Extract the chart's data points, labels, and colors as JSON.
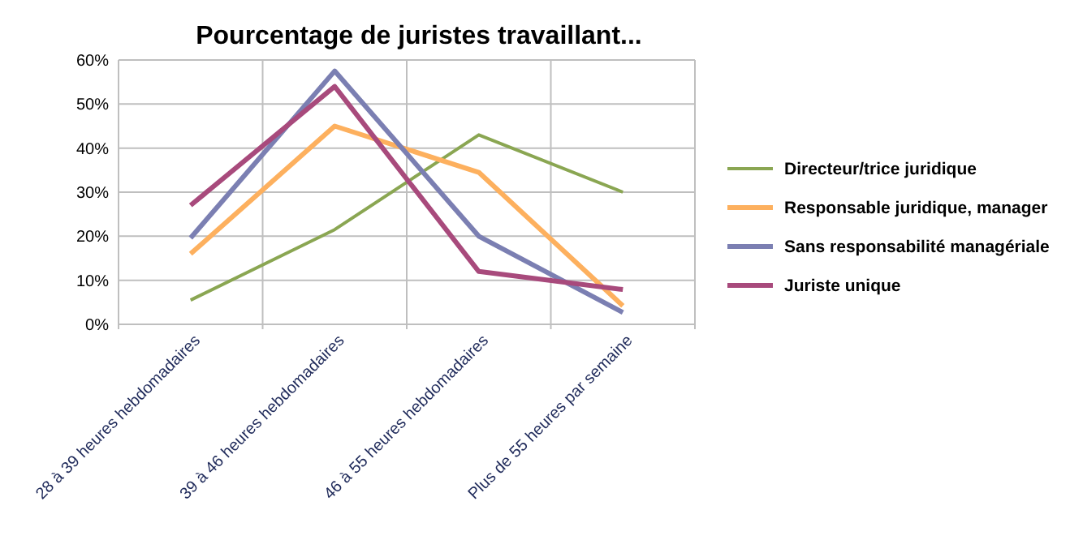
{
  "chart_data": {
    "type": "line",
    "title": "Pourcentage de juristes travaillant...",
    "categories": [
      "28 à 39 heures hebdomadaires",
      "39 à 46 heures hebdomadaires",
      "46 à 55 heures hebdomadaires",
      "Plus de 55 heures par semaine"
    ],
    "series": [
      {
        "name": "Directeur/trice juridique",
        "color": "#8aa652",
        "values": [
          5.5,
          21.5,
          43,
          30
        ]
      },
      {
        "name": "Responsable juridique, manager",
        "color": "#fdb05e",
        "values": [
          16,
          45,
          34.5,
          4.2
        ]
      },
      {
        "name": "Sans responsabilité managériale",
        "color": "#7b7fb2",
        "values": [
          19.6,
          57.5,
          20,
          2.7
        ]
      },
      {
        "name": "Juriste unique",
        "color": "#a84a7c",
        "values": [
          27,
          54,
          12,
          7.9
        ]
      }
    ],
    "ylim": [
      0,
      60
    ],
    "yticks": [
      {
        "value": 0,
        "label": "0%"
      },
      {
        "value": 10,
        "label": "10%"
      },
      {
        "value": 20,
        "label": "20%"
      },
      {
        "value": 30,
        "label": "30%"
      },
      {
        "value": 40,
        "label": "40%"
      },
      {
        "value": 50,
        "label": "50%"
      },
      {
        "value": 60,
        "label": "60%"
      }
    ],
    "grid": true,
    "legend": "right",
    "marker": "none"
  }
}
